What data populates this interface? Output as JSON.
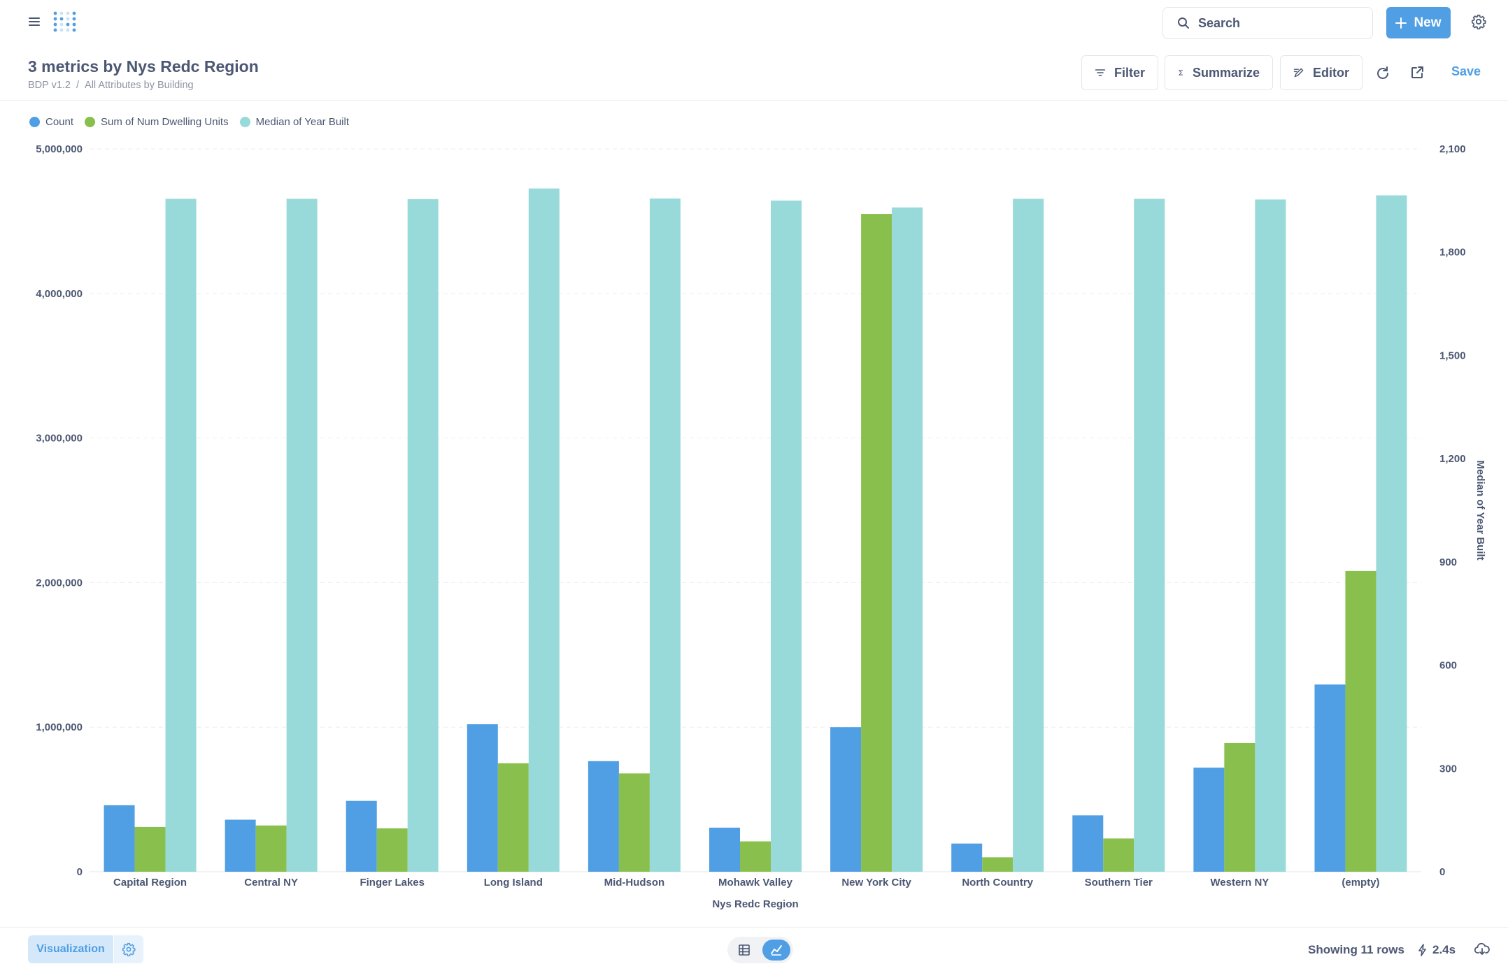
{
  "nav": {
    "search_placeholder": "Search",
    "new_label": "New"
  },
  "header": {
    "title": "3 metrics by Nys Redc Region",
    "breadcrumb": [
      "BDP v1.2",
      "All Attributes by Building"
    ],
    "breadcrumb_separator": "/",
    "filter_label": "Filter",
    "summarize_label": "Summarize",
    "editor_label": "Editor",
    "save_label": "Save"
  },
  "legend": [
    {
      "name": "Count",
      "color": "#509ee3"
    },
    {
      "name": "Sum of Num Dwelling Units",
      "color": "#88bf4d"
    },
    {
      "name": "Median of Year Built",
      "color": "#98d9d9"
    }
  ],
  "chart_data": {
    "type": "bar",
    "categories": [
      "Capital Region",
      "Central NY",
      "Finger Lakes",
      "Long Island",
      "Mid-Hudson",
      "Mohawk Valley",
      "New York City",
      "North Country",
      "Southern Tier",
      "Western NY",
      "(empty)"
    ],
    "series": [
      {
        "name": "Count",
        "axis": "left",
        "color": "#509ee3",
        "values": [
          460000,
          360000,
          490000,
          1020000,
          765000,
          305000,
          1000000,
          195000,
          390000,
          720000,
          1295000
        ]
      },
      {
        "name": "Sum of Num Dwelling Units",
        "axis": "left",
        "color": "#88bf4d",
        "values": [
          310000,
          320000,
          300000,
          750000,
          680000,
          210000,
          4550000,
          100000,
          230000,
          890000,
          2080000
        ]
      },
      {
        "name": "Median of Year Built",
        "axis": "right",
        "color": "#98d9d9",
        "values": [
          1955,
          1955,
          1954,
          1985,
          1956,
          1950,
          1930,
          1955,
          1955,
          1953,
          1965
        ]
      }
    ],
    "xlabel": "Nys Redc Region",
    "ylabel_left": "",
    "ylabel_right": "Median of Year Built",
    "ylim_left": [
      0,
      5000000
    ],
    "ylim_right": [
      0,
      2100
    ],
    "yticks_left": [
      "0",
      "1,000,000",
      "2,000,000",
      "3,000,000",
      "4,000,000",
      "5,000,000"
    ],
    "yticks_right": [
      "0",
      "300",
      "600",
      "900",
      "1,200",
      "1,500",
      "1,800",
      "2,100"
    ],
    "grid": true,
    "legend_position": "top-left"
  },
  "footer": {
    "visualization_label": "Visualization",
    "row_count": "Showing 11 rows",
    "timing": "2.4s"
  }
}
